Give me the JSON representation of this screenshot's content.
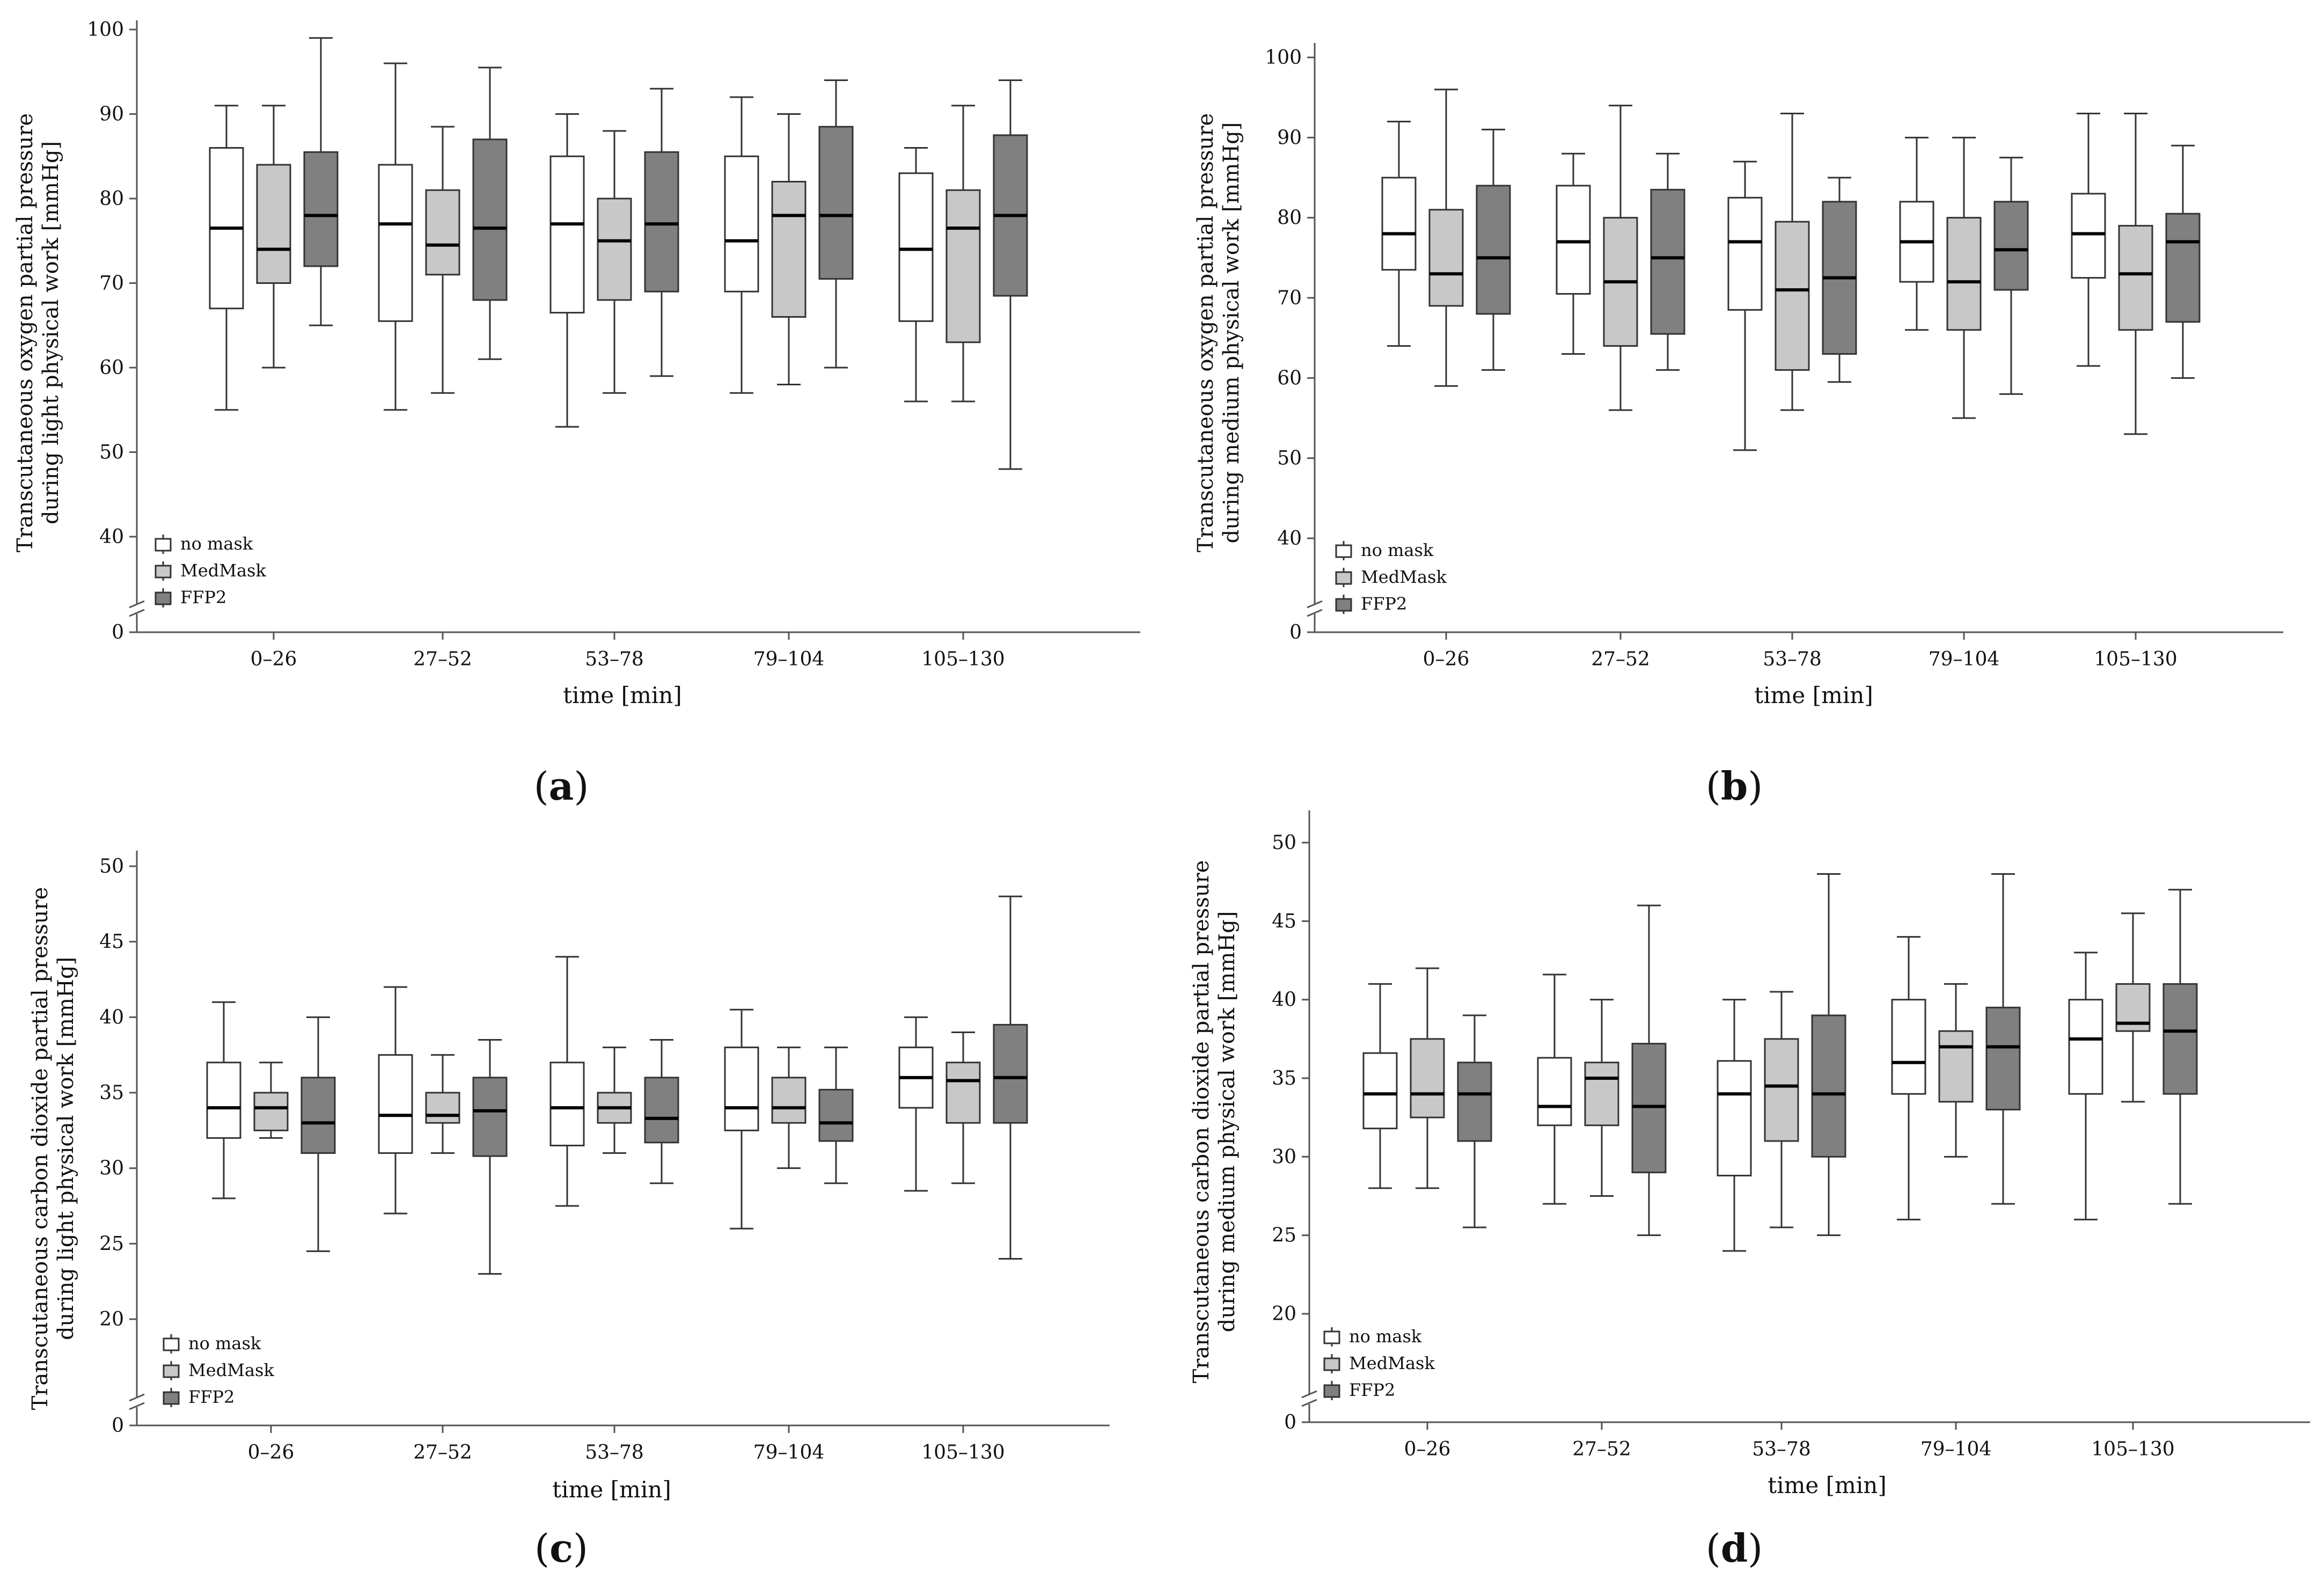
{
  "colors": {
    "no_mask": "#ffffff",
    "medmask": "#c8c8c8",
    "ffp2": "#808080",
    "stroke": "#333333",
    "axis": "#555555"
  },
  "chart_data": [
    {
      "type": "boxplot",
      "panel": "a",
      "panel_label": {
        "open": "(",
        "letter": "a",
        "close": ")"
      },
      "ylabel_lines": [
        "Transcutaneous oxygen partial pressure",
        "during light physical work [mmHg]"
      ],
      "xlabel": "time [min]",
      "categories": [
        "0–26",
        "27–52",
        "53–78",
        "79–104",
        "105–130"
      ],
      "yticks": [
        0,
        40,
        50,
        60,
        70,
        80,
        90,
        100
      ],
      "ytick_labels": [
        "0",
        "40",
        "50",
        "60",
        "70",
        "80",
        "90",
        "100"
      ],
      "ylim": [
        35,
        102
      ],
      "axis_break": true,
      "legend": [
        "no mask",
        "MedMask",
        "FFP2"
      ],
      "series": [
        {
          "name": "no mask",
          "boxes": [
            [
              55,
              67,
              76.5,
              86,
              91
            ],
            [
              55,
              65.5,
              77,
              84,
              96
            ],
            [
              53,
              66.5,
              77,
              85,
              90
            ],
            [
              57,
              69,
              75,
              85,
              92
            ],
            [
              56,
              65.5,
              74,
              83,
              86
            ]
          ]
        },
        {
          "name": "MedMask",
          "boxes": [
            [
              60,
              70,
              74,
              84,
              91
            ],
            [
              57,
              71,
              74.5,
              81,
              88.5
            ],
            [
              57,
              68,
              75,
              80,
              88
            ],
            [
              58,
              66,
              78,
              82,
              90
            ],
            [
              56,
              63,
              76.5,
              81,
              91
            ]
          ]
        },
        {
          "name": "FFP2",
          "boxes": [
            [
              65,
              72,
              78,
              85.5,
              99
            ],
            [
              61,
              68,
              76.5,
              87,
              95.5
            ],
            [
              59,
              69,
              77,
              85.5,
              93
            ],
            [
              60,
              70.5,
              78,
              88.5,
              94
            ],
            [
              48,
              68.5,
              78,
              87.5,
              94
            ]
          ]
        }
      ]
    },
    {
      "type": "boxplot",
      "panel": "b",
      "panel_label": {
        "open": "(",
        "letter": "b",
        "close": ")"
      },
      "ylabel_lines": [
        "Transcutaneous oxygen partial pressure",
        "during medium physical work [mmHg]"
      ],
      "xlabel": "time [min]",
      "categories": [
        "0–26",
        "27–52",
        "53–78",
        "79–104",
        "105–130"
      ],
      "yticks": [
        0,
        40,
        50,
        60,
        70,
        80,
        90,
        100
      ],
      "ytick_labels": [
        "0",
        "40",
        "50",
        "60",
        "70",
        "80",
        "90",
        "100"
      ],
      "ylim": [
        35,
        102
      ],
      "axis_break": true,
      "legend": [
        "no mask",
        "MedMask",
        "FFP2"
      ],
      "series": [
        {
          "name": "no mask",
          "boxes": [
            [
              64,
              73.5,
              78,
              85,
              92
            ],
            [
              63,
              70.5,
              77,
              84,
              88
            ],
            [
              51,
              68.5,
              77,
              82.5,
              87
            ],
            [
              66,
              72,
              77,
              82,
              90
            ],
            [
              61.5,
              72.5,
              78,
              83,
              93
            ]
          ]
        },
        {
          "name": "MedMask",
          "boxes": [
            [
              59,
              69,
              73,
              81,
              96
            ],
            [
              56,
              64,
              72,
              80,
              94
            ],
            [
              56,
              61,
              71,
              79.5,
              93
            ],
            [
              55,
              66,
              72,
              80,
              90
            ],
            [
              53,
              66,
              73,
              79,
              93
            ]
          ]
        },
        {
          "name": "FFP2",
          "boxes": [
            [
              61,
              68,
              75,
              84,
              91
            ],
            [
              61,
              65.5,
              75,
              83.5,
              88
            ],
            [
              59.5,
              63,
              72.5,
              82,
              85
            ],
            [
              58,
              71,
              76,
              82,
              87.5
            ],
            [
              60,
              67,
              77,
              80.5,
              89
            ]
          ]
        }
      ]
    },
    {
      "type": "boxplot",
      "panel": "c",
      "panel_label": {
        "open": "(",
        "letter": "c",
        "close": ")"
      },
      "ylabel_lines": [
        "Transcutaneous carbon dioxide partial pressure",
        "during light physical work [mmHg]"
      ],
      "xlabel": "time [min]",
      "categories": [
        "0–26",
        "27–52",
        "53–78",
        "79–104",
        "105–130"
      ],
      "yticks": [
        0,
        20,
        25,
        30,
        35,
        40,
        45,
        50
      ],
      "ytick_labels": [
        "0",
        "20",
        "25",
        "30",
        "35",
        "40",
        "45",
        "50"
      ],
      "ylim": [
        16,
        51
      ],
      "axis_break": true,
      "legend": [
        "no mask",
        "MedMask",
        "FFP2"
      ],
      "series": [
        {
          "name": "no mask",
          "boxes": [
            [
              28,
              32,
              34,
              37,
              41
            ],
            [
              27,
              31,
              33.5,
              37.5,
              42
            ],
            [
              27.5,
              31.5,
              34,
              37,
              44
            ],
            [
              26,
              32.5,
              34,
              38,
              40.5
            ],
            [
              28.5,
              34,
              36,
              38,
              40
            ]
          ]
        },
        {
          "name": "MedMask",
          "boxes": [
            [
              32,
              32.5,
              34,
              35,
              37
            ],
            [
              31,
              33,
              33.5,
              35,
              37.5
            ],
            [
              31,
              33,
              34,
              35,
              38
            ],
            [
              30,
              33,
              34,
              36,
              38
            ],
            [
              29,
              33,
              35.8,
              37,
              39
            ]
          ]
        },
        {
          "name": "FFP2",
          "boxes": [
            [
              24.5,
              31,
              33,
              36,
              40
            ],
            [
              23,
              30.8,
              33.8,
              36,
              38.5
            ],
            [
              29,
              31.7,
              33.3,
              36,
              38.5
            ],
            [
              29,
              31.8,
              33,
              35.2,
              38
            ],
            [
              24,
              33,
              36,
              39.5,
              48
            ]
          ]
        }
      ]
    },
    {
      "type": "boxplot",
      "panel": "d",
      "panel_label": {
        "open": "(",
        "letter": "d",
        "close": ")"
      },
      "ylabel_lines": [
        "Transcutaneous carbon dioxide partial pressure",
        "during medium physical work [mmHg]"
      ],
      "xlabel": "time [min]",
      "categories": [
        "0–26",
        "27–52",
        "53–78",
        "79–104",
        "105–130"
      ],
      "yticks": [
        0,
        20,
        25,
        30,
        35,
        40,
        45,
        50
      ],
      "ytick_labels": [
        "0",
        "20",
        "25",
        "30",
        "35",
        "40",
        "45",
        "50"
      ],
      "ylim": [
        16,
        52
      ],
      "axis_break": true,
      "legend": [
        "no mask",
        "MedMask",
        "FFP2"
      ],
      "series": [
        {
          "name": "no mask",
          "boxes": [
            [
              28,
              31.8,
              34,
              36.6,
              41
            ],
            [
              27,
              32,
              33.2,
              36.3,
              41.6
            ],
            [
              24,
              28.8,
              34,
              36.1,
              40
            ],
            [
              26,
              34,
              36,
              40,
              44
            ],
            [
              26,
              34,
              37.5,
              40,
              43
            ]
          ]
        },
        {
          "name": "MedMask",
          "boxes": [
            [
              28,
              32.5,
              34,
              37.5,
              42
            ],
            [
              27.5,
              32,
              35,
              36,
              40
            ],
            [
              25.5,
              31,
              34.5,
              37.5,
              40.5
            ],
            [
              30,
              33.5,
              37,
              38,
              41
            ],
            [
              33.5,
              38,
              38.5,
              41,
              45.5
            ]
          ]
        },
        {
          "name": "FFP2",
          "boxes": [
            [
              25.5,
              31,
              34,
              36,
              39
            ],
            [
              25,
              29,
              33.2,
              37.2,
              46
            ],
            [
              25,
              30,
              34,
              39,
              48
            ],
            [
              27,
              33,
              37,
              39.5,
              48
            ],
            [
              27,
              34,
              38,
              41,
              47
            ]
          ]
        }
      ]
    }
  ]
}
